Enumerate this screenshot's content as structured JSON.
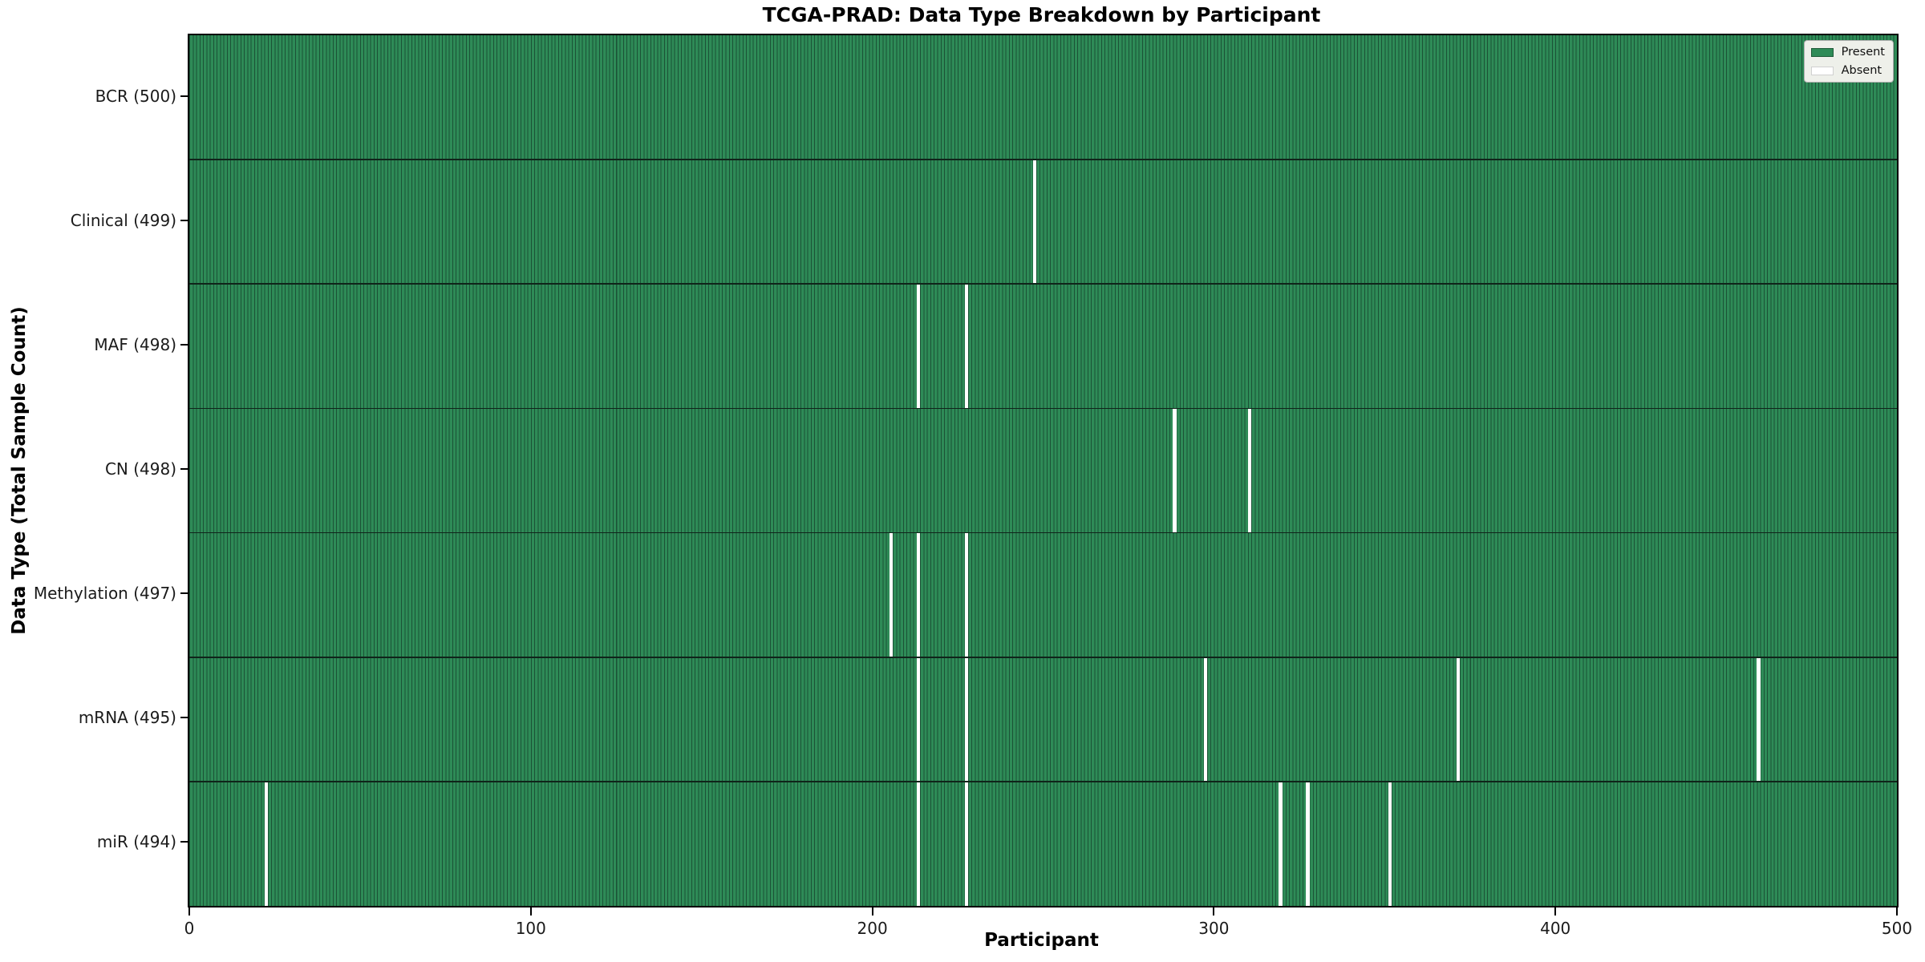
{
  "chart_data": {
    "type": "heatmap",
    "title": "TCGA-PRAD: Data Type Breakdown by Participant",
    "xlabel": "Participant",
    "ylabel": "Data Type (Total Sample Count)",
    "xlim": [
      0,
      500
    ],
    "x_ticks": [
      0,
      100,
      200,
      300,
      400,
      500
    ],
    "n_participants": 500,
    "grid": false,
    "legend": {
      "position": "upper right",
      "entries": [
        {
          "label": "Present",
          "color": "#2e8b57"
        },
        {
          "label": "Absent",
          "color": "#ffffff"
        }
      ]
    },
    "rows": [
      {
        "label": "BCR (500)",
        "data_type": "BCR",
        "present_count": 500,
        "absent_participants": []
      },
      {
        "label": "Clinical (499)",
        "data_type": "Clinical",
        "present_count": 499,
        "absent_participants": [
          247
        ]
      },
      {
        "label": "MAF (498)",
        "data_type": "MAF",
        "present_count": 498,
        "absent_participants": [
          213,
          227
        ]
      },
      {
        "label": "CN (498)",
        "data_type": "CN",
        "present_count": 498,
        "absent_participants": [
          288,
          310
        ]
      },
      {
        "label": "Methylation (497)",
        "data_type": "Methylation",
        "present_count": 497,
        "absent_participants": [
          205,
          213,
          227
        ]
      },
      {
        "label": "mRNA (495)",
        "data_type": "mRNA",
        "present_count": 495,
        "absent_participants": [
          213,
          227,
          297,
          371,
          459
        ]
      },
      {
        "label": "miR (494)",
        "data_type": "miR",
        "present_count": 494,
        "absent_participants": [
          22,
          213,
          227,
          319,
          327,
          351
        ]
      }
    ],
    "colors": {
      "present": "#2e8b57",
      "cell_edge": "#1b5236",
      "absent": "#ffffff",
      "row_separator": "#10241a",
      "axis": "#000000",
      "legend_bg": "#eef0ea",
      "legend_border": "#b0b0b0",
      "text": "#111111"
    }
  }
}
